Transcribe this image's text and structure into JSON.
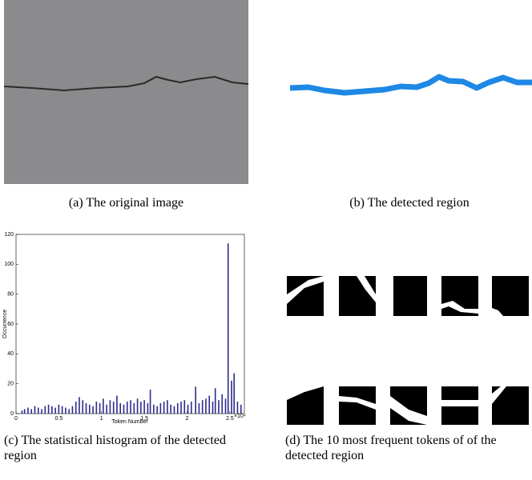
{
  "figure": {
    "captions": [
      "(a) The original image",
      "(b) The detected region",
      "(c) The statistical histogram of the detected region",
      "(d) The 10 most frequent tokens of of the detected region"
    ]
  },
  "chart_data": {
    "type": "bar",
    "x_label": "Token Number",
    "y_label": "Occurrence",
    "x_multiplier": "×10⁴",
    "color": "#2e2a8c",
    "x": [
      700,
      1000,
      1400,
      1800,
      2200,
      2600,
      3000,
      3400,
      3800,
      4200,
      4600,
      5000,
      5400,
      5800,
      6200,
      6600,
      7000,
      7400,
      7800,
      8200,
      8600,
      9000,
      9400,
      9800,
      10200,
      10600,
      11000,
      11400,
      11800,
      12200,
      12600,
      13000,
      13400,
      13800,
      14200,
      14600,
      15000,
      15400,
      15700,
      16100,
      16500,
      16900,
      17300,
      17700,
      18100,
      18500,
      18900,
      19300,
      19700,
      20100,
      20500,
      21000,
      21400,
      21800,
      22200,
      22600,
      23000,
      23300,
      23700,
      24100,
      24500,
      24800,
      25200,
      25500,
      25900,
      26300
    ],
    "values": [
      2,
      3,
      4,
      3,
      5,
      4,
      3,
      5,
      6,
      5,
      4,
      6,
      5,
      4,
      3,
      5,
      8,
      11,
      9,
      7,
      6,
      5,
      8,
      7,
      10,
      6,
      9,
      8,
      12,
      7,
      6,
      8,
      9,
      7,
      10,
      8,
      9,
      7,
      16,
      6,
      5,
      7,
      8,
      9,
      6,
      5,
      7,
      8,
      9,
      6,
      8,
      18,
      7,
      9,
      10,
      12,
      8,
      17,
      9,
      13,
      10,
      114,
      22,
      27,
      8,
      6
    ],
    "xlim": [
      0,
      26700
    ],
    "ylim": [
      0,
      120
    ],
    "xticks": [
      0,
      {
        "value": 5000,
        "label": "0.5"
      },
      {
        "value": 10000,
        "label": "1"
      },
      {
        "value": 15000,
        "label": "1.5"
      },
      {
        "value": 20000,
        "label": "2"
      },
      {
        "value": 25000,
        "label": "2.5"
      }
    ],
    "yticks": [
      0,
      20,
      40,
      60,
      80,
      100,
      120
    ]
  }
}
